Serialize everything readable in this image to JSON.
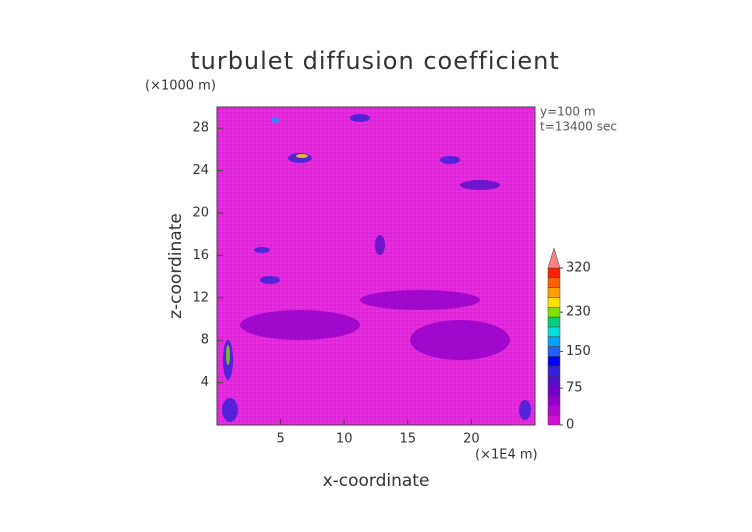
{
  "chart_data": {
    "type": "heatmap",
    "title": "turbulet diffusion coefficient",
    "y_unit_label": "(×1000 m)",
    "x_unit_label": "(×1E4 m)",
    "xlabel": "x-coordinate",
    "ylabel": "z-coordinate",
    "annotations": [
      "y=100 m",
      "t=13400 sec"
    ],
    "xlim": [
      0,
      25
    ],
    "xticks": [
      5,
      10,
      15,
      20
    ],
    "ylim": [
      0,
      30
    ],
    "yticks": [
      4,
      8,
      12,
      16,
      20,
      24,
      28
    ],
    "field_color": "#e020d8",
    "colorbar": {
      "lim": [
        0,
        320
      ],
      "ticks": [
        0,
        75,
        150,
        230,
        320
      ],
      "colors": [
        "#d010d0",
        "#b008c8",
        "#9000c8",
        "#7000c8",
        "#5010c8",
        "#3020d8",
        "#0000ff",
        "#2060ff",
        "#00a0ff",
        "#00e0e0",
        "#00d080",
        "#80e000",
        "#ffe000",
        "#ffa000",
        "#ff6000",
        "#ff2000"
      ],
      "extend_color": "#ff8080"
    }
  }
}
